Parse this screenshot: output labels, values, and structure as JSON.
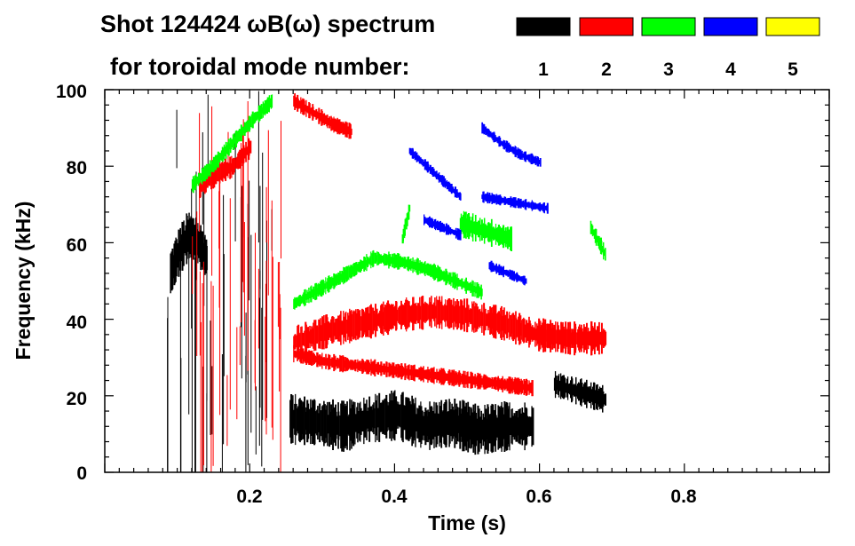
{
  "chart_data": {
    "type": "scatter",
    "title_line1": "Shot 124424 ωB(ω) spectrum",
    "title_line2": "for toroidal mode number:",
    "xlabel": "Time (s)",
    "ylabel": "Frequency (kHz)",
    "xlim": [
      0.0,
      1.0
    ],
    "ylim": [
      0,
      100
    ],
    "x_ticks": [
      0.2,
      0.4,
      0.6,
      0.8
    ],
    "x_tick_labels": [
      "0.2",
      "0.4",
      "0.6",
      "0.8"
    ],
    "y_ticks": [
      0,
      20,
      40,
      60,
      80,
      100
    ],
    "y_tick_labels": [
      "0",
      "20",
      "40",
      "60",
      "80",
      "100"
    ],
    "legend": [
      {
        "n": "1",
        "color": "#000000"
      },
      {
        "n": "2",
        "color": "#ff0000"
      },
      {
        "n": "3",
        "color": "#00ff00"
      },
      {
        "n": "4",
        "color": "#0000ff"
      },
      {
        "n": "5",
        "color": "#ffff00"
      }
    ],
    "series": [
      {
        "name": "n=1",
        "color": "#000000",
        "traces": [
          {
            "t0": 0.09,
            "t1": 0.14,
            "f": [
              52,
              58,
              62,
              60,
              56
            ],
            "width": 9,
            "vspan": [
              0.085,
              0.245
            ]
          },
          {
            "t0": 0.255,
            "t1": 0.59,
            "f": [
              14,
              13,
              12,
              14,
              15,
              12,
              13,
              11,
              12,
              12
            ],
            "width": 9
          },
          {
            "t0": 0.62,
            "t1": 0.69,
            "f": [
              23,
              22,
              21,
              20,
              19
            ],
            "width": 5
          }
        ]
      },
      {
        "name": "n=2",
        "color": "#ff0000",
        "traces": [
          {
            "t0": 0.13,
            "t1": 0.2,
            "f": [
              74,
              78,
              80,
              85
            ],
            "width": 4,
            "vspan": [
              0.12,
              0.25
            ]
          },
          {
            "t0": 0.26,
            "t1": 0.34,
            "f": [
              97,
              94,
              91,
              89
            ],
            "width": 3
          },
          {
            "t0": 0.26,
            "t1": 0.69,
            "f": [
              34,
              37,
              39,
              41,
              42,
              41,
              39,
              36,
              35,
              35
            ],
            "width": 6
          },
          {
            "t0": 0.26,
            "t1": 0.59,
            "f": [
              31,
              29,
              28,
              27,
              26,
              25,
              24,
              23,
              22
            ],
            "width": 3
          }
        ]
      },
      {
        "name": "n=3",
        "color": "#00ff00",
        "traces": [
          {
            "t0": 0.12,
            "t1": 0.23,
            "f": [
              75,
              80,
              86,
              92,
              97
            ],
            "width": 3
          },
          {
            "t0": 0.26,
            "t1": 0.52,
            "f": [
              44,
              48,
              52,
              56,
              55,
              53,
              50,
              47
            ],
            "width": 3
          },
          {
            "t0": 0.41,
            "t1": 0.42,
            "f": [
              61,
              69
            ],
            "width": 3
          },
          {
            "t0": 0.49,
            "t1": 0.56,
            "f": [
              65,
              63,
              61
            ],
            "width": 5
          },
          {
            "t0": 0.67,
            "t1": 0.69,
            "f": [
              64,
              57
            ],
            "width": 3
          }
        ]
      },
      {
        "name": "n=4",
        "color": "#0000ff",
        "traces": [
          {
            "t0": 0.42,
            "t1": 0.49,
            "f": [
              84,
              80,
              76,
              72
            ],
            "width": 2
          },
          {
            "t0": 0.44,
            "t1": 0.49,
            "f": [
              66,
              64,
              62
            ],
            "width": 2
          },
          {
            "t0": 0.52,
            "t1": 0.6,
            "f": [
              90,
              86,
              83,
              81
            ],
            "width": 2
          },
          {
            "t0": 0.52,
            "t1": 0.61,
            "f": [
              72,
              71,
              70,
              69
            ],
            "width": 2
          },
          {
            "t0": 0.53,
            "t1": 0.58,
            "f": [
              54,
              52,
              50
            ],
            "width": 2
          }
        ]
      },
      {
        "name": "n=5",
        "color": "#ffff00",
        "traces": []
      }
    ]
  }
}
